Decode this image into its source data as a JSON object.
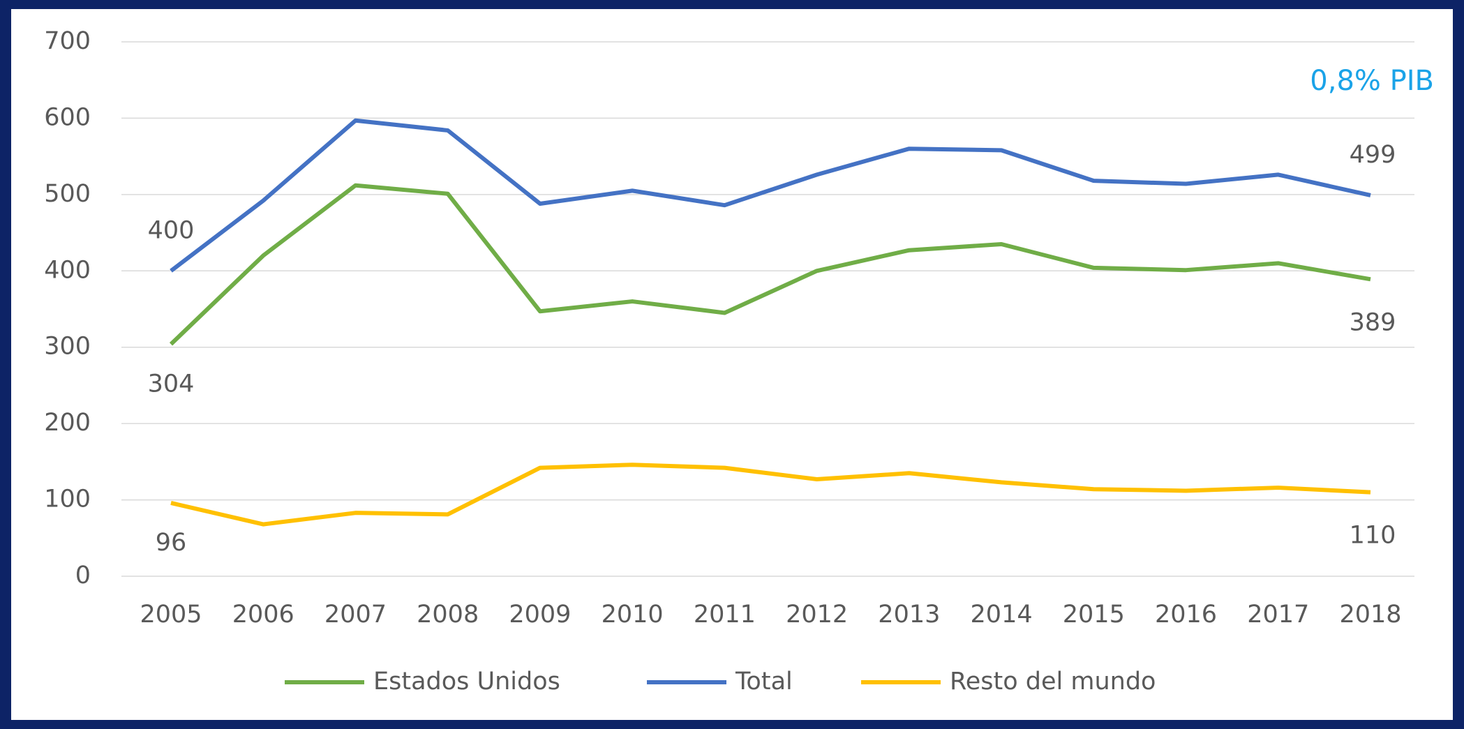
{
  "chart_data": {
    "type": "line",
    "categories": [
      "2005",
      "2006",
      "2007",
      "2008",
      "2009",
      "2010",
      "2011",
      "2012",
      "2013",
      "2014",
      "2015",
      "2016",
      "2017",
      "2018"
    ],
    "series": [
      {
        "name": "Estados Unidos",
        "color": "#70ad47",
        "values": [
          304,
          420,
          512,
          501,
          347,
          360,
          345,
          400,
          427,
          435,
          404,
          401,
          410,
          389
        ]
      },
      {
        "name": "Total",
        "color": "#4472c4",
        "values": [
          400,
          492,
          597,
          584,
          488,
          505,
          486,
          526,
          560,
          558,
          518,
          514,
          526,
          499
        ]
      },
      {
        "name": "Resto del mundo",
        "color": "#ffc000",
        "values": [
          96,
          68,
          83,
          81,
          142,
          146,
          142,
          127,
          135,
          123,
          114,
          112,
          116,
          110
        ]
      }
    ],
    "annotations": [
      "0,8% PIB"
    ],
    "ylim": [
      0,
      700
    ],
    "yticks": [
      0,
      100,
      200,
      300,
      400,
      500,
      600,
      700
    ],
    "grid": true,
    "legend": "bottom"
  }
}
